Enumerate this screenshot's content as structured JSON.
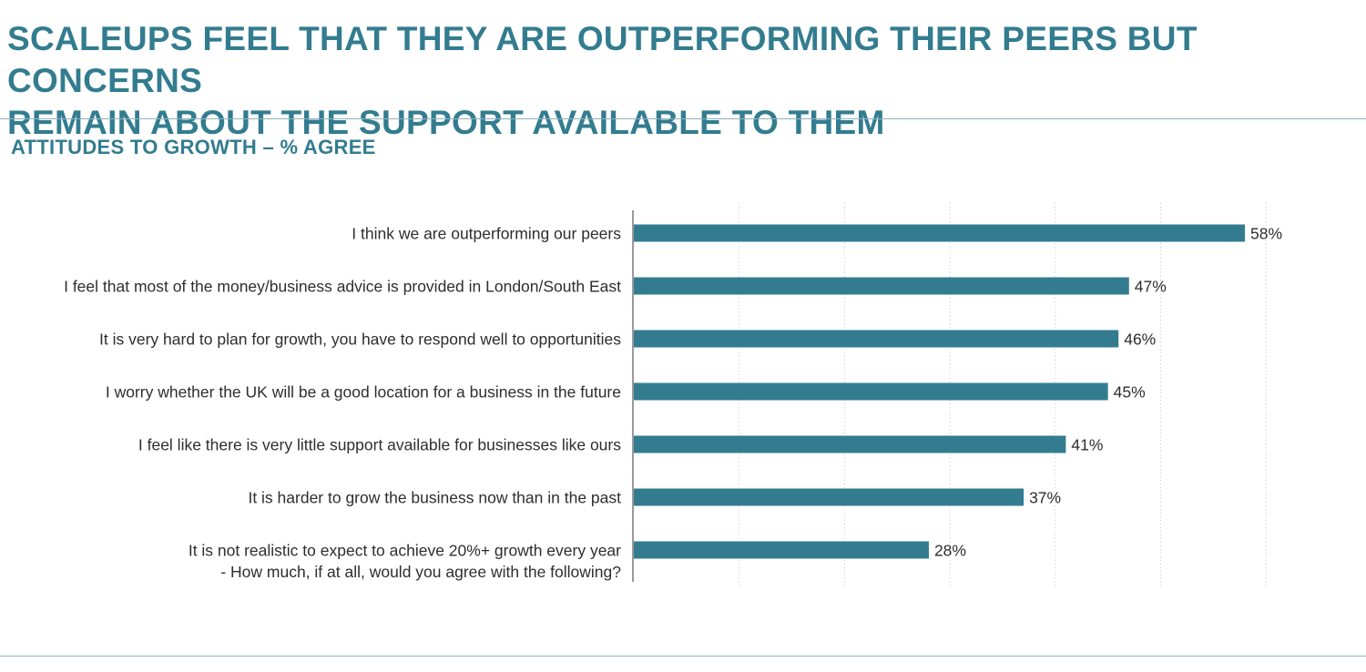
{
  "header": {
    "title_line1": "SCALEUPS FEEL THAT THEY ARE OUTPERFORMING THEIR PEERS BUT CONCERNS",
    "title_line2": "REMAIN ABOUT THE SUPPORT AVAILABLE TO THEM"
  },
  "chart_data": {
    "type": "bar",
    "orientation": "horizontal",
    "title": "ATTITUDES TO GROWTH – % AGREE",
    "categories": [
      "I think we are outperforming our peers",
      "I feel that most of the money/business advice is provided in London/South East",
      "It is very hard to plan for growth, you have to respond well to opportunities",
      "I worry whether the UK will be a good location for a business in the future",
      "I feel like there is very little support available for businesses like ours",
      "It is harder to grow the business now than in the past",
      "It is not realistic to expect to achieve 20%+ growth every year"
    ],
    "values": [
      58,
      47,
      46,
      45,
      41,
      37,
      28
    ],
    "value_labels": [
      "58%",
      "47%",
      "46%",
      "45%",
      "41%",
      "37%",
      "28%"
    ],
    "xlim": [
      0,
      60
    ],
    "grid": true,
    "question_note": "- How much, if at all, would you agree with the following?",
    "bar_color": "#337c90"
  }
}
